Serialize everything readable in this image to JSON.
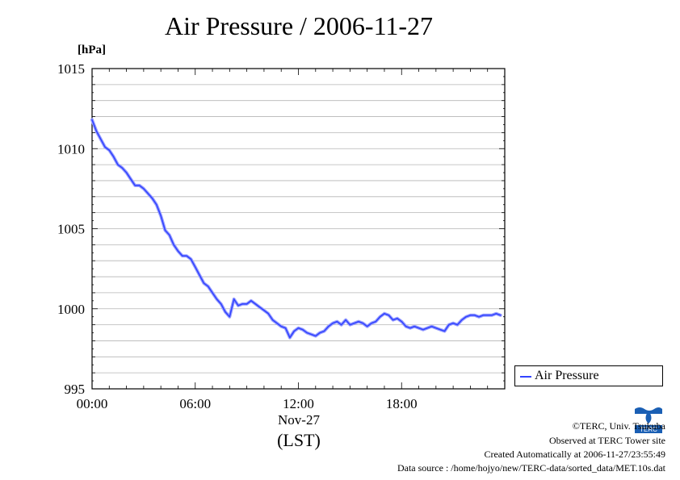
{
  "title": "Air Pressure / 2006-11-27",
  "footer": {
    "copyright": "©TERC, Univ. Tsukuba",
    "observed": "Observed at TERC Tower site",
    "created": "Created Automatically at 2006-11-27/23:55:49",
    "source": "Data source : /home/hojyo/new/TERC-data/sorted_data/MET.10s.dat",
    "logo_text": "TERC"
  },
  "chart_data": {
    "type": "line",
    "title": "Air Pressure / 2006-11-27",
    "ylabel": "[hPa]",
    "xlabel": "Nov-27",
    "xlabel2": "(LST)",
    "ylim": [
      995,
      1015
    ],
    "yticks": [
      995,
      1000,
      1005,
      1010,
      1015
    ],
    "xlim": [
      0,
      24
    ],
    "xticks": [
      0,
      6,
      12,
      18
    ],
    "xtick_labels": [
      "00:00",
      "06:00",
      "12:00",
      "18:00"
    ],
    "grid": true,
    "legend": "outside-bottom-right",
    "series": [
      {
        "name": "Air Pressure",
        "color": "#3344ff",
        "x": [
          0,
          0.25,
          0.5,
          0.75,
          1.0,
          1.25,
          1.5,
          1.75,
          2.0,
          2.25,
          2.5,
          2.75,
          3.0,
          3.25,
          3.5,
          3.75,
          4.0,
          4.25,
          4.5,
          4.75,
          5.0,
          5.25,
          5.5,
          5.75,
          6.0,
          6.25,
          6.5,
          6.75,
          7.0,
          7.25,
          7.5,
          7.75,
          8.0,
          8.25,
          8.5,
          8.75,
          9.0,
          9.25,
          9.5,
          9.75,
          10.0,
          10.25,
          10.5,
          10.75,
          11.0,
          11.25,
          11.5,
          11.75,
          12.0,
          12.25,
          12.5,
          12.75,
          13.0,
          13.25,
          13.5,
          13.75,
          14.0,
          14.25,
          14.5,
          14.75,
          15.0,
          15.25,
          15.5,
          15.75,
          16.0,
          16.25,
          16.5,
          16.75,
          17.0,
          17.25,
          17.5,
          17.75,
          18.0,
          18.25,
          18.5,
          18.75,
          19.0,
          19.25,
          19.5,
          19.75,
          20.0,
          20.25,
          20.5,
          20.75,
          21.0,
          21.25,
          21.5,
          21.75,
          22.0,
          22.25,
          22.5,
          22.75,
          23.0,
          23.25,
          23.5,
          23.75
        ],
        "values": [
          1011.8,
          1011.1,
          1010.6,
          1010.1,
          1009.9,
          1009.5,
          1009.0,
          1008.8,
          1008.5,
          1008.1,
          1007.7,
          1007.7,
          1007.5,
          1007.2,
          1006.9,
          1006.5,
          1005.8,
          1004.9,
          1004.6,
          1004.0,
          1003.6,
          1003.3,
          1003.3,
          1003.1,
          1002.6,
          1002.1,
          1001.6,
          1001.4,
          1001.0,
          1000.6,
          1000.3,
          999.8,
          999.5,
          1000.6,
          1000.2,
          1000.3,
          1000.3,
          1000.5,
          1000.3,
          1000.1,
          999.9,
          999.7,
          999.3,
          999.1,
          998.9,
          998.8,
          998.2,
          998.6,
          998.8,
          998.7,
          998.5,
          998.4,
          998.3,
          998.5,
          998.6,
          998.9,
          999.1,
          999.2,
          999.0,
          999.3,
          999.0,
          999.1,
          999.2,
          999.1,
          998.9,
          999.1,
          999.2,
          999.5,
          999.7,
          999.6,
          999.3,
          999.4,
          999.2,
          998.9,
          998.8,
          998.9,
          998.8,
          998.7,
          998.8,
          998.9,
          998.8,
          998.7,
          998.6,
          999.0,
          999.1,
          999.0,
          999.3,
          999.5,
          999.6,
          999.6,
          999.5,
          999.6,
          999.6,
          999.6,
          999.7,
          999.6
        ]
      }
    ]
  }
}
